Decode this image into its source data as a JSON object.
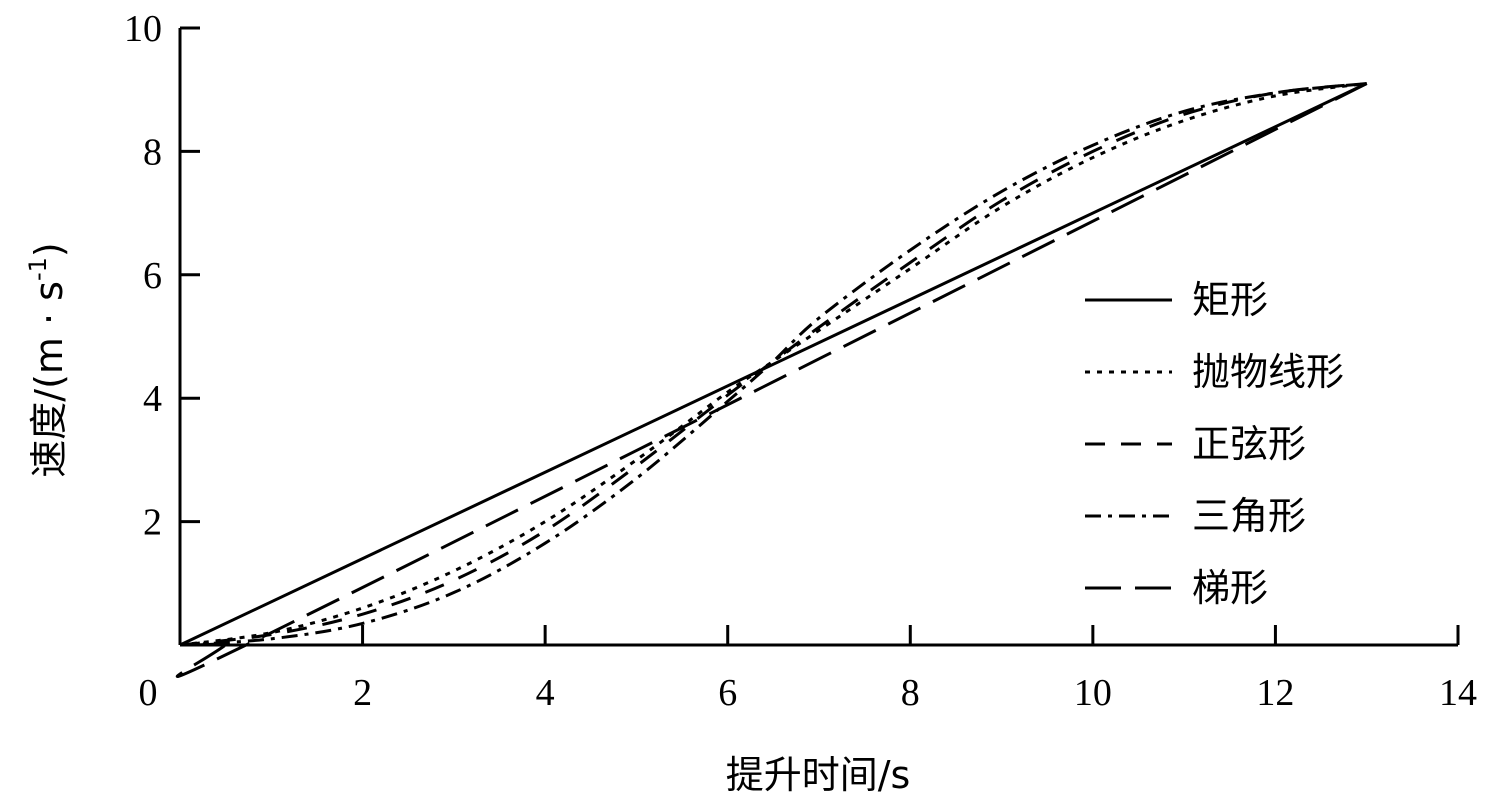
{
  "chart_data": {
    "type": "line",
    "xlabel": "提升时间/s",
    "ylabel": "速度/(m · s",
    "ylabel_superscript": "-1",
    "ylabel_close": ")",
    "xlim": [
      0,
      14
    ],
    "ylim": [
      0,
      10
    ],
    "xticks": [
      0,
      2,
      4,
      6,
      8,
      10,
      12,
      14
    ],
    "yticks": [
      2,
      4,
      6,
      8,
      10
    ],
    "x_tick_labels": [
      "0",
      "2",
      "4",
      "6",
      "8",
      "10",
      "12",
      "14"
    ],
    "y_tick_labels": [
      "2",
      "4",
      "6",
      "8",
      "10"
    ],
    "grid": false,
    "legend_position": "right",
    "series": [
      {
        "name": "矩形",
        "style": "solid",
        "x": [
          0,
          13
        ],
        "y": [
          0,
          9.1
        ]
      },
      {
        "name": "抛物线形",
        "style": "dotted",
        "x": [
          0,
          1,
          2,
          3,
          4,
          5,
          6,
          6.5,
          7,
          8,
          9,
          10,
          11,
          12,
          13
        ],
        "y": [
          0,
          0.2,
          0.6,
          1.2,
          2.0,
          3.0,
          4.1,
          4.6,
          5.1,
          6.1,
          7.1,
          7.9,
          8.5,
          8.9,
          9.1
        ]
      },
      {
        "name": "正弦形",
        "style": "dashed",
        "x": [
          0,
          1,
          2,
          3,
          4,
          5,
          6,
          6.5,
          7,
          8,
          9,
          10,
          11,
          12,
          13
        ],
        "y": [
          0,
          0.17,
          0.5,
          1.05,
          1.85,
          2.9,
          4.05,
          4.6,
          5.15,
          6.2,
          7.2,
          8.0,
          8.6,
          8.95,
          9.1
        ]
      },
      {
        "name": "三角形",
        "style": "dashdot",
        "x": [
          0,
          1,
          2,
          3,
          4,
          5,
          6,
          6.5,
          7,
          8,
          9,
          10,
          11,
          12,
          13
        ],
        "y": [
          0,
          0.1,
          0.35,
          0.85,
          1.65,
          2.7,
          3.95,
          4.6,
          5.3,
          6.4,
          7.35,
          8.1,
          8.65,
          8.95,
          9.1
        ]
      },
      {
        "name": "梯形",
        "style": "longdash",
        "x": [
          0,
          0.5,
          1,
          13
        ],
        "y": [
          0,
          0.03,
          0.2,
          9.1
        ]
      }
    ]
  }
}
